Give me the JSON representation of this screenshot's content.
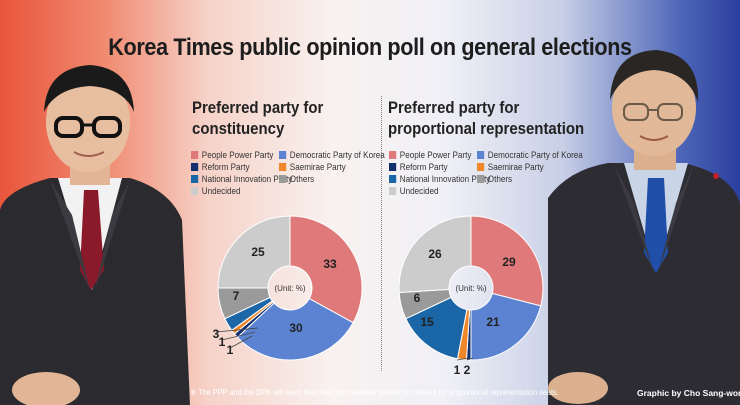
{
  "title": "Korea Times public opinion poll on general elections",
  "panels": [
    {
      "title_line1": "Preferred party for",
      "title_line2": "constituency",
      "legend": [
        "People Power Party",
        "Democratic Party of Korea",
        "Reform Party",
        "Saemirae Party",
        "National Innovation Party",
        "Others",
        "Undecided"
      ],
      "unit": "(Unit: %)"
    },
    {
      "title_line1": "Preferred party for",
      "title_line2": "proportional representation",
      "legend": [
        "People Power Party",
        "Democratic Party of Korea",
        "Reform Party",
        "Saemirae Party",
        "National Innovation Party",
        "Others",
        "Undecided"
      ],
      "unit": "(Unit: %)"
    }
  ],
  "colors": {
    "People Power Party": "#e07a7a",
    "Democratic Party of Korea": "#5b83d2",
    "Reform Party": "#13306e",
    "Saemirae Party": "#f0882b",
    "National Innovation Party": "#1a66a6",
    "Others": "#9a9a9a",
    "Undecided": "#cccccc"
  },
  "chart_data": [
    {
      "type": "pie",
      "title": "Preferred party for constituency",
      "unit": "%",
      "labels": [
        "People Power Party",
        "Democratic Party of Korea",
        "Reform Party",
        "Saemirae Party",
        "National Innovation Party",
        "Others",
        "Undecided"
      ],
      "values": [
        33,
        30,
        1,
        1,
        3,
        7,
        25
      ],
      "legend": "top"
    },
    {
      "type": "pie",
      "title": "Preferred party for proportional representation",
      "unit": "%",
      "labels": [
        "People Power Party",
        "Democratic Party of Korea",
        "Reform Party",
        "Saemirae Party",
        "National Innovation Party",
        "Others",
        "Undecided"
      ],
      "values": [
        29,
        21,
        1,
        2,
        15,
        6,
        26
      ],
      "legend": "top"
    }
  ],
  "footnote": "※ The PPP and the DPK will each field their own satellite parties to contend for proportional representation seats.",
  "credit": "Graphic by Cho Sang-won"
}
